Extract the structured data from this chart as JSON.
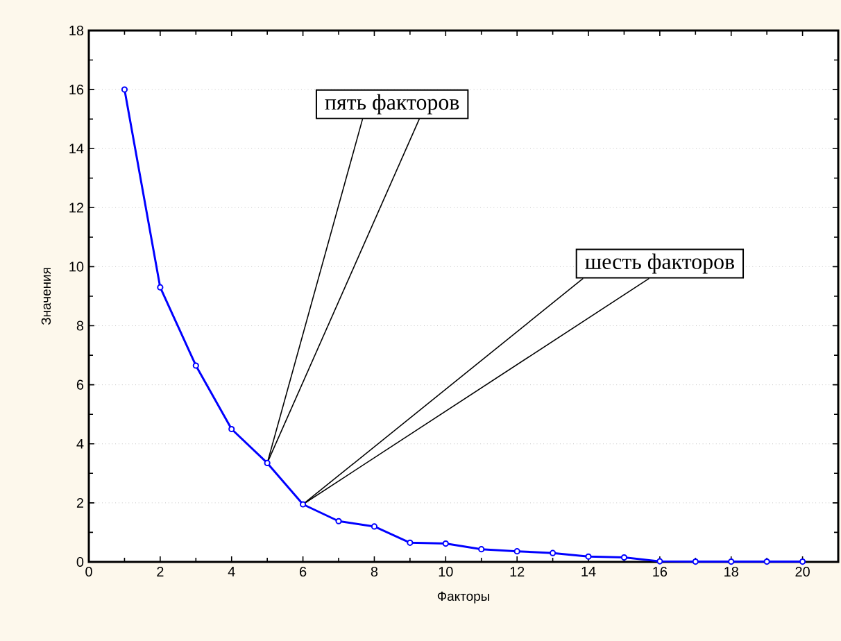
{
  "chart_data": {
    "type": "line",
    "xlabel": "Факторы",
    "ylabel": "Значения",
    "x": [
      1,
      2,
      3,
      4,
      5,
      6,
      7,
      8,
      9,
      10,
      11,
      12,
      13,
      14,
      15,
      16,
      17,
      18,
      19,
      20
    ],
    "series": [
      {
        "color": "#0000ff",
        "values": [
          16,
          9.3,
          6.65,
          4.5,
          3.35,
          1.95,
          1.38,
          1.2,
          0.65,
          0.62,
          0.43,
          0.36,
          0.3,
          0.18,
          0.15,
          0.02,
          0.01,
          0.01,
          0.01,
          0.01
        ]
      }
    ],
    "xlim": [
      0,
      21
    ],
    "ylim": [
      0,
      18
    ],
    "xticks": [
      0,
      2,
      4,
      6,
      8,
      10,
      12,
      14,
      16,
      18,
      20
    ],
    "yticks": [
      0,
      2,
      4,
      6,
      8,
      10,
      12,
      14,
      16,
      18
    ],
    "grid": "y",
    "marker": "circle",
    "line_style": "solid",
    "annotations": [
      {
        "text": "пять факторов",
        "x": 5,
        "y": 3.35
      },
      {
        "text": "шесть факторов",
        "x": 6,
        "y": 1.95
      }
    ]
  }
}
